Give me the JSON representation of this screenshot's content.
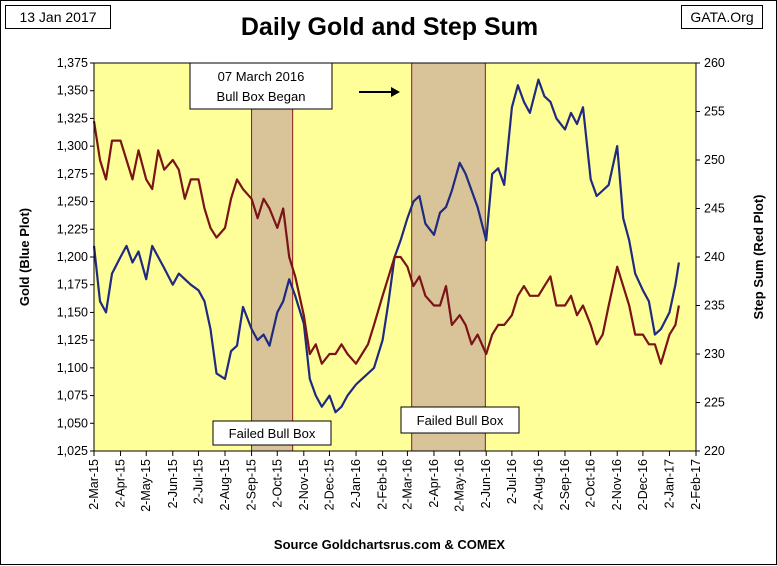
{
  "header": {
    "date": "13 Jan 2017",
    "site": "GATA.Org"
  },
  "footer": {
    "source": "Source Goldchartsrus.com & COMEX"
  },
  "colors": {
    "plot_bg": "#FFFF99",
    "box_fill": "#D9C49A",
    "box_edge": "#8B1A1A",
    "gold_line": "#1F2A80",
    "step_line": "#7B1416"
  },
  "chart_data": {
    "type": "line",
    "title": "Daily Gold and Step Sum",
    "ylabel_left": "Gold   (Blue Plot)",
    "ylabel_right": "Step Sum   (Red Plot)",
    "ylim_left": [
      1025,
      1375
    ],
    "ylim_right": [
      220,
      260
    ],
    "yticks_left": [
      "1,025",
      "1,050",
      "1,075",
      "1,100",
      "1,125",
      "1,150",
      "1,175",
      "1,200",
      "1,225",
      "1,250",
      "1,275",
      "1,300",
      "1,325",
      "1,350",
      "1,375"
    ],
    "yticks_right": [
      "220",
      "225",
      "230",
      "235",
      "240",
      "245",
      "250",
      "255",
      "260"
    ],
    "x_dates": [
      "2-Mar-15",
      "2-Apr-15",
      "2-May-15",
      "2-Jun-15",
      "2-Jul-15",
      "2-Aug-15",
      "2-Sep-15",
      "2-Oct-15",
      "2-Nov-15",
      "2-Dec-15",
      "2-Jan-16",
      "2-Feb-16",
      "2-Mar-16",
      "2-Apr-16",
      "2-May-16",
      "2-Jun-16",
      "2-Jul-16",
      "2-Aug-16",
      "2-Sep-16",
      "2-Oct-16",
      "2-Nov-16",
      "2-Dec-16",
      "2-Jan-17",
      "2-Feb-17"
    ],
    "shaded_boxes": [
      {
        "start": "2015-09-02",
        "end": "2015-10-20",
        "label": "Failed Bull Box"
      },
      {
        "start": "2016-03-07",
        "end": "2016-06-01",
        "label": "Failed Bull Box"
      }
    ],
    "annotation": {
      "text_line1": "07 March 2016",
      "text_line2": "Bull Box Began",
      "arrow_to": "2016-03-07"
    },
    "series": [
      {
        "name": "Gold",
        "axis": "left",
        "x": [
          "2015-03-02",
          "2015-03-09",
          "2015-03-16",
          "2015-03-23",
          "2015-04-02",
          "2015-04-09",
          "2015-04-16",
          "2015-04-23",
          "2015-05-02",
          "2015-05-09",
          "2015-05-16",
          "2015-05-23",
          "2015-06-02",
          "2015-06-09",
          "2015-06-16",
          "2015-06-23",
          "2015-07-02",
          "2015-07-09",
          "2015-07-16",
          "2015-07-23",
          "2015-08-02",
          "2015-08-09",
          "2015-08-16",
          "2015-08-23",
          "2015-09-02",
          "2015-09-09",
          "2015-09-16",
          "2015-09-23",
          "2015-10-02",
          "2015-10-09",
          "2015-10-16",
          "2015-10-23",
          "2015-11-02",
          "2015-11-09",
          "2015-11-16",
          "2015-11-23",
          "2015-12-02",
          "2015-12-09",
          "2015-12-16",
          "2015-12-23",
          "2016-01-02",
          "2016-01-09",
          "2016-01-16",
          "2016-01-23",
          "2016-02-02",
          "2016-02-09",
          "2016-02-16",
          "2016-02-23",
          "2016-03-02",
          "2016-03-09",
          "2016-03-16",
          "2016-03-23",
          "2016-04-02",
          "2016-04-09",
          "2016-04-16",
          "2016-04-23",
          "2016-05-02",
          "2016-05-09",
          "2016-05-16",
          "2016-05-23",
          "2016-06-02",
          "2016-06-09",
          "2016-06-16",
          "2016-06-23",
          "2016-07-02",
          "2016-07-09",
          "2016-07-16",
          "2016-07-23",
          "2016-08-02",
          "2016-08-09",
          "2016-08-16",
          "2016-08-23",
          "2016-09-02",
          "2016-09-09",
          "2016-09-16",
          "2016-09-23",
          "2016-10-02",
          "2016-10-09",
          "2016-10-16",
          "2016-10-23",
          "2016-11-02",
          "2016-11-09",
          "2016-11-16",
          "2016-11-23",
          "2016-12-02",
          "2016-12-09",
          "2016-12-16",
          "2016-12-23",
          "2017-01-02",
          "2017-01-09",
          "2017-01-13"
        ],
        "y": [
          1210,
          1160,
          1150,
          1185,
          1200,
          1210,
          1195,
          1205,
          1180,
          1210,
          1200,
          1190,
          1175,
          1185,
          1180,
          1175,
          1170,
          1160,
          1135,
          1095,
          1090,
          1115,
          1120,
          1155,
          1135,
          1125,
          1130,
          1120,
          1150,
          1160,
          1180,
          1165,
          1140,
          1090,
          1075,
          1065,
          1075,
          1060,
          1065,
          1075,
          1085,
          1090,
          1095,
          1100,
          1125,
          1160,
          1200,
          1215,
          1235,
          1250,
          1255,
          1230,
          1220,
          1240,
          1245,
          1260,
          1285,
          1275,
          1260,
          1245,
          1215,
          1275,
          1280,
          1265,
          1335,
          1355,
          1340,
          1330,
          1360,
          1345,
          1340,
          1325,
          1315,
          1330,
          1320,
          1335,
          1270,
          1255,
          1260,
          1265,
          1300,
          1235,
          1215,
          1185,
          1170,
          1160,
          1130,
          1135,
          1150,
          1175,
          1195
        ]
      },
      {
        "name": "Step Sum",
        "axis": "right",
        "x": [
          "2015-03-02",
          "2015-03-09",
          "2015-03-16",
          "2015-03-23",
          "2015-04-02",
          "2015-04-09",
          "2015-04-16",
          "2015-04-23",
          "2015-05-02",
          "2015-05-09",
          "2015-05-16",
          "2015-05-23",
          "2015-06-02",
          "2015-06-09",
          "2015-06-16",
          "2015-06-23",
          "2015-07-02",
          "2015-07-09",
          "2015-07-16",
          "2015-07-23",
          "2015-08-02",
          "2015-08-09",
          "2015-08-16",
          "2015-08-23",
          "2015-09-02",
          "2015-09-09",
          "2015-09-16",
          "2015-09-23",
          "2015-10-02",
          "2015-10-09",
          "2015-10-16",
          "2015-10-23",
          "2015-11-02",
          "2015-11-09",
          "2015-11-16",
          "2015-11-23",
          "2015-12-02",
          "2015-12-09",
          "2015-12-16",
          "2015-12-23",
          "2016-01-02",
          "2016-01-09",
          "2016-01-16",
          "2016-01-23",
          "2016-02-02",
          "2016-02-09",
          "2016-02-16",
          "2016-02-23",
          "2016-03-02",
          "2016-03-09",
          "2016-03-16",
          "2016-03-23",
          "2016-04-02",
          "2016-04-09",
          "2016-04-16",
          "2016-04-23",
          "2016-05-02",
          "2016-05-09",
          "2016-05-16",
          "2016-05-23",
          "2016-06-02",
          "2016-06-09",
          "2016-06-16",
          "2016-06-23",
          "2016-07-02",
          "2016-07-09",
          "2016-07-16",
          "2016-07-23",
          "2016-08-02",
          "2016-08-09",
          "2016-08-16",
          "2016-08-23",
          "2016-09-02",
          "2016-09-09",
          "2016-09-16",
          "2016-09-23",
          "2016-10-02",
          "2016-10-09",
          "2016-10-16",
          "2016-10-23",
          "2016-11-02",
          "2016-11-09",
          "2016-11-16",
          "2016-11-23",
          "2016-12-02",
          "2016-12-09",
          "2016-12-16",
          "2016-12-23",
          "2017-01-02",
          "2017-01-09",
          "2017-01-13"
        ],
        "y": [
          254,
          250,
          248,
          252,
          252,
          250,
          248,
          251,
          248,
          247,
          251,
          249,
          250,
          249,
          246,
          248,
          248,
          245,
          243,
          242,
          243,
          246,
          248,
          247,
          246,
          244,
          246,
          245,
          243,
          245,
          240,
          238,
          234,
          230,
          231,
          229,
          230,
          230,
          231,
          230,
          229,
          230,
          231,
          233,
          236,
          238,
          240,
          240,
          239,
          237,
          238,
          236,
          235,
          235,
          237,
          233,
          234,
          233,
          231,
          232,
          230,
          232,
          233,
          233,
          234,
          236,
          237,
          236,
          236,
          237,
          238,
          235,
          235,
          236,
          234,
          235,
          233,
          231,
          232,
          235,
          239,
          237,
          235,
          232,
          232,
          231,
          231,
          229,
          232,
          233,
          235
        ]
      }
    ]
  }
}
